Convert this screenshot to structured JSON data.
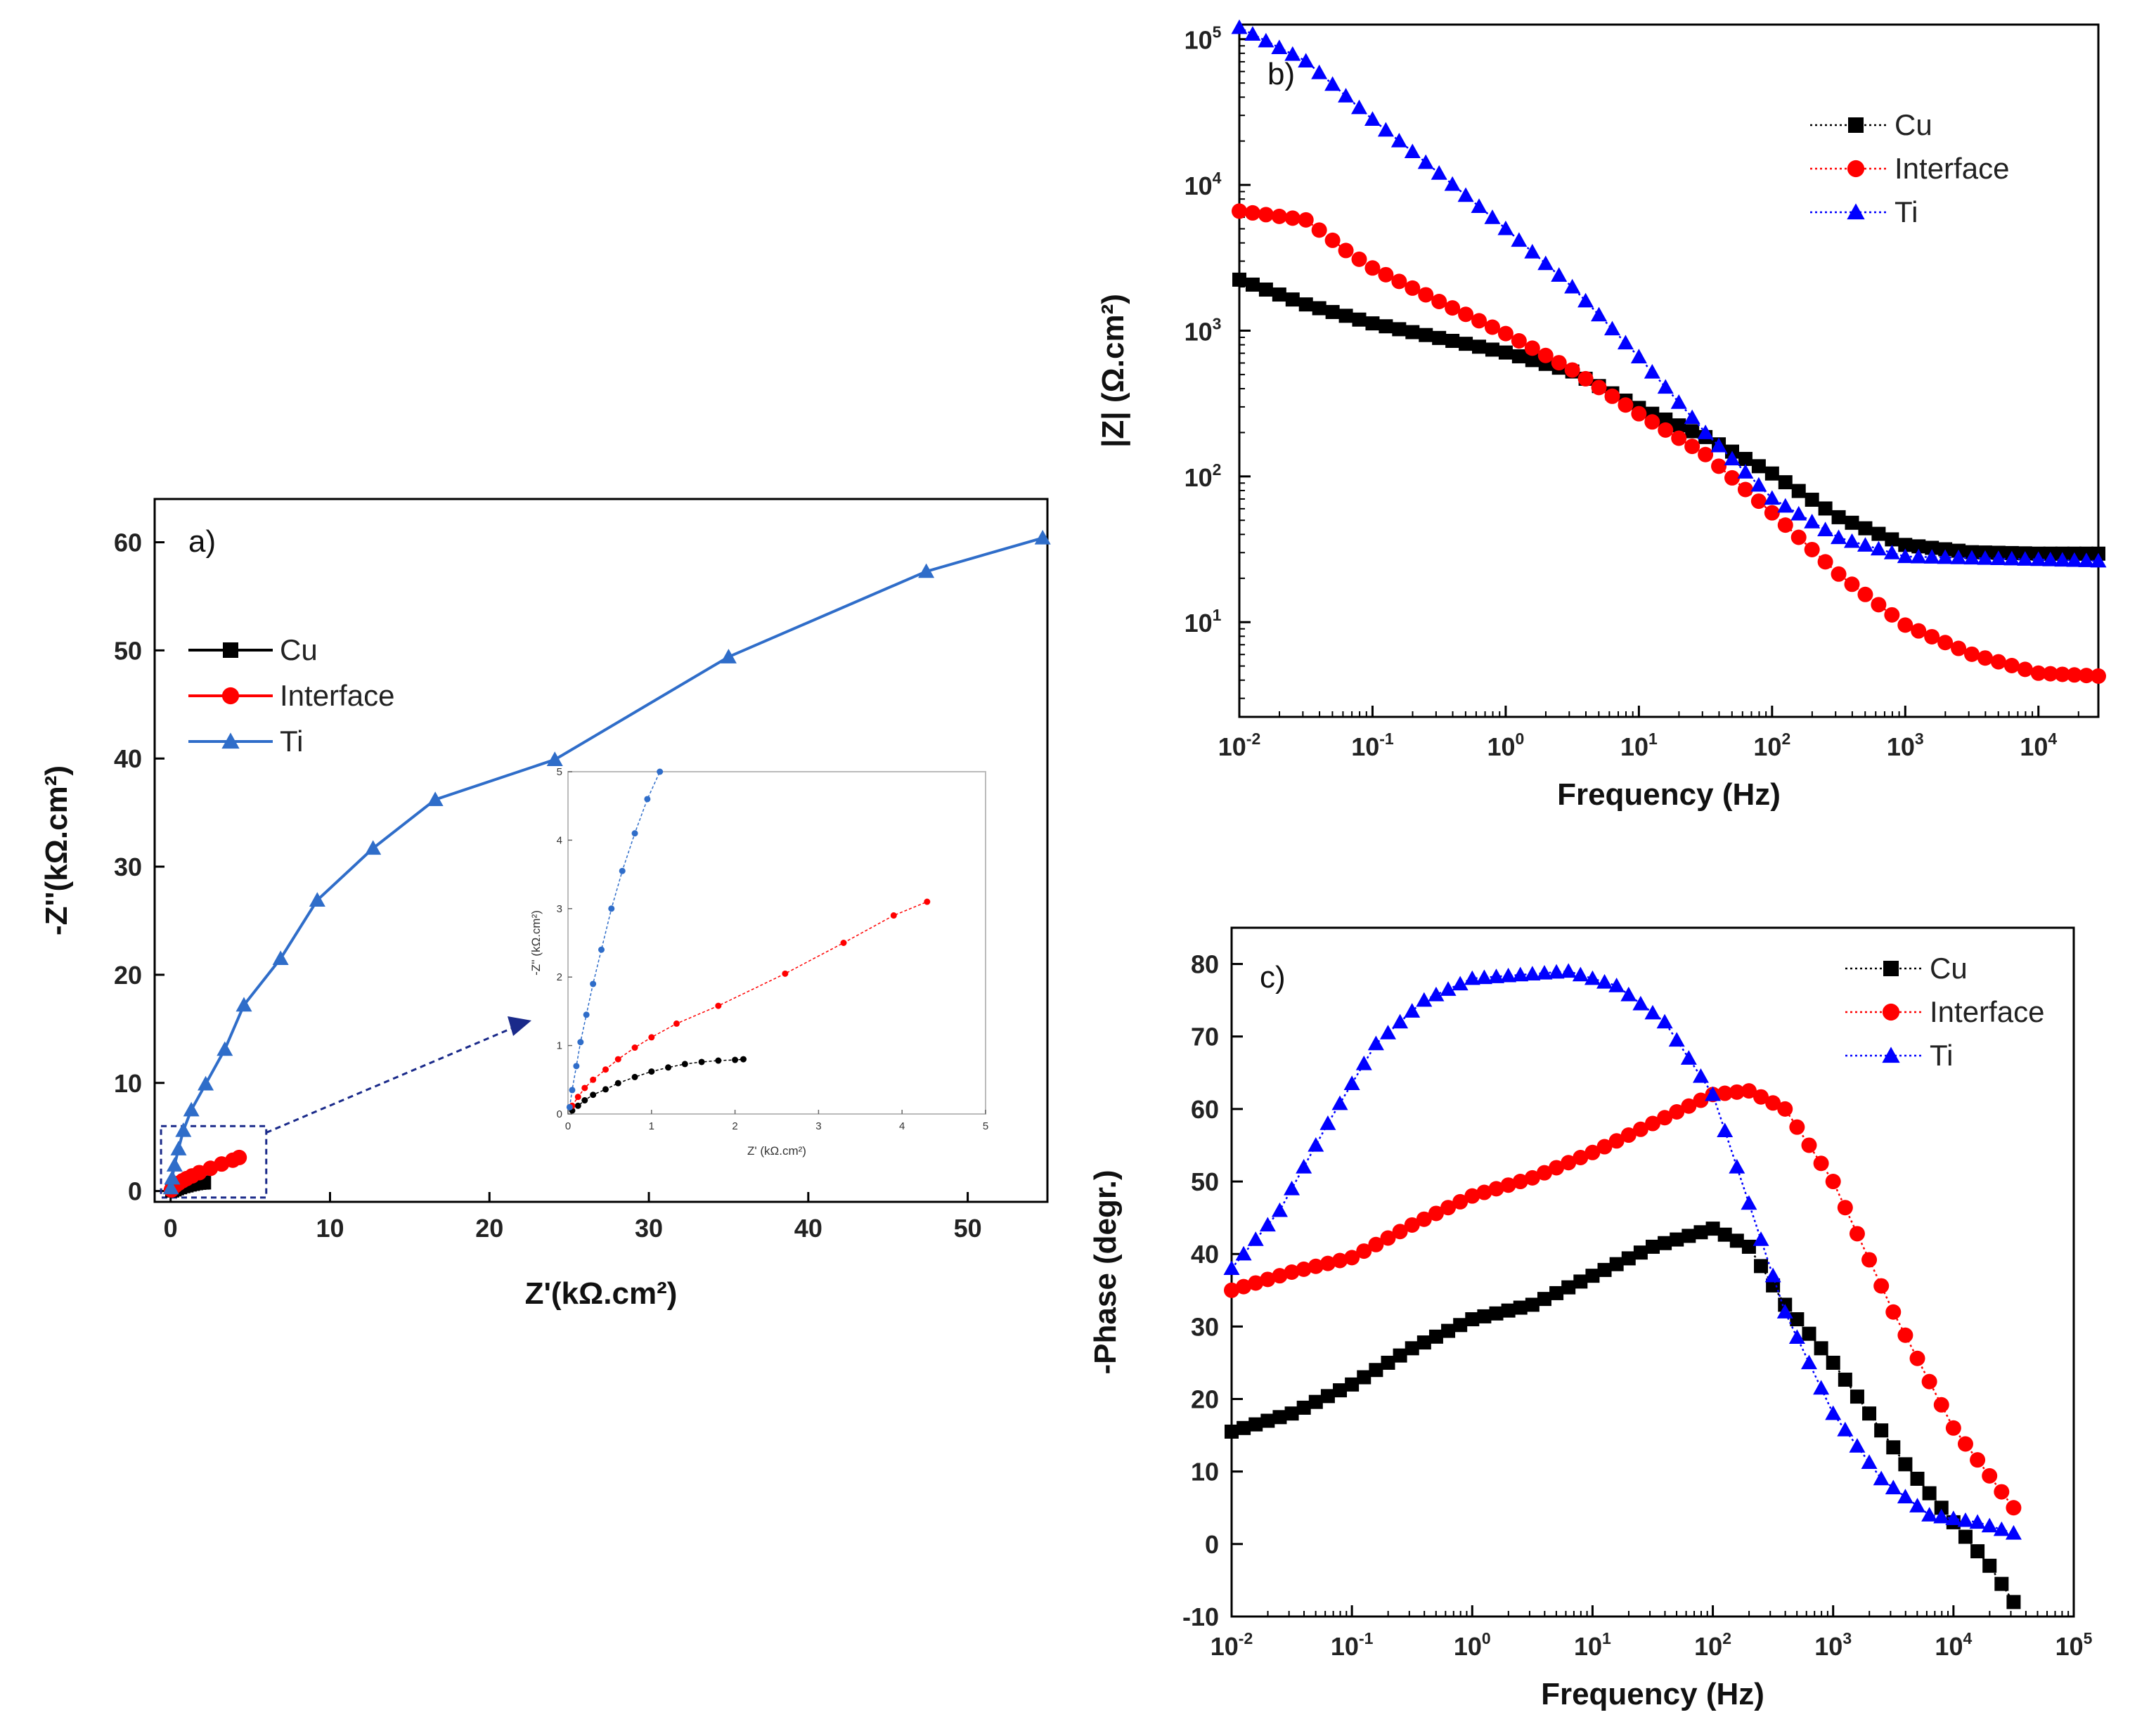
{
  "chart_data": [
    {
      "id": "a",
      "type": "line",
      "panel_label": "a)",
      "xlabel": "Z'(kΩ.cm²)",
      "ylabel": "-Z''(kΩ.cm²)",
      "xlim": [
        -1,
        55
      ],
      "ylim": [
        -1,
        64
      ],
      "xticks": [
        0,
        10,
        20,
        30,
        40,
        50
      ],
      "yticks": [
        0,
        10,
        20,
        30,
        40,
        50,
        60
      ],
      "legend": [
        "Cu",
        "Interface",
        "Ti"
      ],
      "series": [
        {
          "name": "Cu",
          "color": "#000000",
          "marker": "square",
          "x": [
            0.1,
            0.25,
            0.4,
            0.6,
            0.8,
            1.0,
            1.2,
            1.4,
            1.6,
            1.8,
            2.0,
            2.1
          ],
          "y": [
            0.05,
            0.15,
            0.25,
            0.35,
            0.45,
            0.52,
            0.6,
            0.66,
            0.72,
            0.76,
            0.78,
            0.79
          ]
        },
        {
          "name": "Interface",
          "color": "#ff0000",
          "marker": "circle",
          "x": [
            0.05,
            0.15,
            0.3,
            0.5,
            0.75,
            1.0,
            1.35,
            1.8,
            2.5,
            3.2,
            3.9,
            4.3
          ],
          "y": [
            0.1,
            0.3,
            0.5,
            0.72,
            0.95,
            1.15,
            1.4,
            1.7,
            2.1,
            2.5,
            2.85,
            3.1
          ]
        },
        {
          "name": "Ti",
          "color": "#2f6dc9",
          "marker": "triangle",
          "x": [
            0.02,
            0.1,
            0.25,
            0.5,
            0.8,
            1.3,
            2.2,
            3.4,
            4.6,
            6.9,
            9.2,
            12.7,
            16.6,
            24.1,
            35,
            47.4,
            54.7
          ],
          "y": [
            0.3,
            1.2,
            2.4,
            3.9,
            5.6,
            7.5,
            9.9,
            13.1,
            17.2,
            21.5,
            26.9,
            31.7,
            36.2,
            39.9,
            49.4,
            57.3,
            60.4
          ]
        }
      ],
      "annotation": "dashed box around origin with arrow to zoomed inset"
    },
    {
      "id": "a_inset",
      "type": "line",
      "xlabel": "Z' (kΩ.cm²)",
      "ylabel": "-Z'' (kΩ.cm²)",
      "xlim": [
        0,
        5
      ],
      "ylim": [
        0,
        5
      ],
      "xticks": [
        0,
        1,
        2,
        3,
        4,
        5
      ],
      "yticks": [
        0,
        1,
        2,
        3,
        4,
        5
      ],
      "series": [
        {
          "name": "Cu",
          "color": "#000000",
          "x": [
            0.05,
            0.12,
            0.2,
            0.3,
            0.45,
            0.6,
            0.8,
            1.0,
            1.2,
            1.4,
            1.6,
            1.8,
            2.0,
            2.1
          ],
          "y": [
            0.05,
            0.12,
            0.2,
            0.28,
            0.36,
            0.45,
            0.54,
            0.62,
            0.68,
            0.73,
            0.76,
            0.78,
            0.79,
            0.8
          ]
        },
        {
          "name": "Interface",
          "color": "#ff0000",
          "x": [
            0.05,
            0.12,
            0.2,
            0.3,
            0.45,
            0.6,
            0.8,
            1.0,
            1.3,
            1.8,
            2.6,
            3.3,
            3.9,
            4.3
          ],
          "y": [
            0.12,
            0.25,
            0.38,
            0.5,
            0.65,
            0.8,
            0.97,
            1.12,
            1.32,
            1.58,
            2.05,
            2.5,
            2.9,
            3.1
          ]
        },
        {
          "name": "Ti",
          "color": "#2f6dc9",
          "x": [
            0.02,
            0.05,
            0.1,
            0.15,
            0.22,
            0.3,
            0.4,
            0.52,
            0.65,
            0.8,
            0.95,
            1.1
          ],
          "y": [
            0.1,
            0.35,
            0.7,
            1.05,
            1.45,
            1.9,
            2.4,
            3.0,
            3.55,
            4.1,
            4.6,
            5.0
          ]
        }
      ]
    },
    {
      "id": "b",
      "type": "scatter",
      "panel_label": "b)",
      "xlabel": "Frequency (Hz)",
      "ylabel": "|Z| (Ω.cm²)",
      "xscale": "log",
      "yscale": "log",
      "xlim_exp": [
        -2,
        4.45
      ],
      "ylim_exp": [
        0.35,
        5.1
      ],
      "xticks_exp": [
        -2,
        -1,
        0,
        1,
        2,
        3,
        4
      ],
      "yticks_exp": [
        1,
        2,
        3,
        4,
        5
      ],
      "legend": [
        "Cu",
        "Interface",
        "Ti"
      ],
      "series": [
        {
          "name": "Cu",
          "color": "#000000",
          "marker": "square",
          "points": [
            [
              -2,
              3.35
            ],
            [
              -1.5,
              3.18
            ],
            [
              -1,
              3.05
            ],
            [
              -0.5,
              2.95
            ],
            [
              0,
              2.85
            ],
            [
              0.5,
              2.72
            ],
            [
              1,
              2.47
            ],
            [
              1.5,
              2.27
            ],
            [
              2,
              2.02
            ],
            [
              2.5,
              1.72
            ],
            [
              3,
              1.53
            ],
            [
              3.5,
              1.48
            ],
            [
              4,
              1.47
            ],
            [
              4.45,
              1.47
            ]
          ]
        },
        {
          "name": "Interface",
          "color": "#ff0000",
          "marker": "circle",
          "points": [
            [
              -2,
              3.82
            ],
            [
              -1.5,
              3.76
            ],
            [
              -1.2,
              3.55
            ],
            [
              -1,
              3.43
            ],
            [
              -0.5,
              3.2
            ],
            [
              0,
              2.98
            ],
            [
              0.5,
              2.73
            ],
            [
              1,
              2.43
            ],
            [
              1.5,
              2.15
            ],
            [
              2,
              1.75
            ],
            [
              2.5,
              1.33
            ],
            [
              3,
              0.98
            ],
            [
              3.5,
              0.78
            ],
            [
              4,
              0.65
            ],
            [
              4.45,
              0.63
            ]
          ]
        },
        {
          "name": "Ti",
          "color": "#0000ff",
          "marker": "triangle",
          "points": [
            [
              -2,
              5.08
            ],
            [
              -1.5,
              4.85
            ],
            [
              -1,
              4.45
            ],
            [
              -0.5,
              4.08
            ],
            [
              0,
              3.7
            ],
            [
              0.5,
              3.3
            ],
            [
              1,
              2.82
            ],
            [
              1.5,
              2.3
            ],
            [
              2,
              1.85
            ],
            [
              2.5,
              1.58
            ],
            [
              3,
              1.45
            ],
            [
              3.5,
              1.44
            ],
            [
              4,
              1.43
            ],
            [
              4.45,
              1.42
            ]
          ]
        }
      ]
    },
    {
      "id": "c",
      "type": "scatter",
      "panel_label": "c)",
      "xlabel": "Frequency (Hz)",
      "ylabel": "-Phase (degr.)",
      "xscale": "log",
      "xlim_exp": [
        -2,
        5
      ],
      "ylim": [
        -10,
        85
      ],
      "xticks_exp": [
        -2,
        -1,
        0,
        1,
        2,
        3,
        4,
        5
      ],
      "yticks": [
        -10,
        0,
        10,
        20,
        30,
        40,
        50,
        60,
        70,
        80
      ],
      "legend": [
        "Cu",
        "Interface",
        "Ti"
      ],
      "series": [
        {
          "name": "Cu",
          "color": "#000000",
          "marker": "square",
          "points": [
            [
              -2,
              15.5
            ],
            [
              -1.5,
              18
            ],
            [
              -1,
              22
            ],
            [
              -0.5,
              27
            ],
            [
              0,
              31
            ],
            [
              0.5,
              33
            ],
            [
              1,
              37
            ],
            [
              1.5,
              41
            ],
            [
              2,
              43.5
            ],
            [
              2.3,
              41
            ],
            [
              2.6,
              33
            ],
            [
              3,
              25
            ],
            [
              3.3,
              18
            ],
            [
              3.6,
              11
            ],
            [
              4,
              3
            ],
            [
              4.3,
              -3
            ],
            [
              4.5,
              -8
            ]
          ]
        },
        {
          "name": "Interface",
          "color": "#ff0000",
          "marker": "circle",
          "points": [
            [
              -2,
              35
            ],
            [
              -1.5,
              37.5
            ],
            [
              -1,
              39.5
            ],
            [
              -0.5,
              44
            ],
            [
              0,
              48
            ],
            [
              0.5,
              50.5
            ],
            [
              1,
              54
            ],
            [
              1.5,
              58
            ],
            [
              2,
              62
            ],
            [
              2.3,
              62.5
            ],
            [
              2.6,
              60
            ],
            [
              3,
              50
            ],
            [
              3.5,
              32
            ],
            [
              4,
              16
            ],
            [
              4.5,
              5
            ]
          ]
        },
        {
          "name": "Ti",
          "color": "#0000ff",
          "marker": "triangle",
          "points": [
            [
              -2,
              38
            ],
            [
              -1.6,
              46
            ],
            [
              -1.2,
              58
            ],
            [
              -0.8,
              69
            ],
            [
              -0.4,
              75
            ],
            [
              0,
              78
            ],
            [
              0.4,
              78.5
            ],
            [
              0.8,
              79
            ],
            [
              1.2,
              77
            ],
            [
              1.6,
              72
            ],
            [
              2,
              62
            ],
            [
              2.3,
              47
            ],
            [
              2.6,
              32
            ],
            [
              3,
              18
            ],
            [
              3.4,
              9
            ],
            [
              3.8,
              4
            ],
            [
              4.2,
              3
            ],
            [
              4.5,
              1.5
            ]
          ]
        }
      ]
    }
  ]
}
